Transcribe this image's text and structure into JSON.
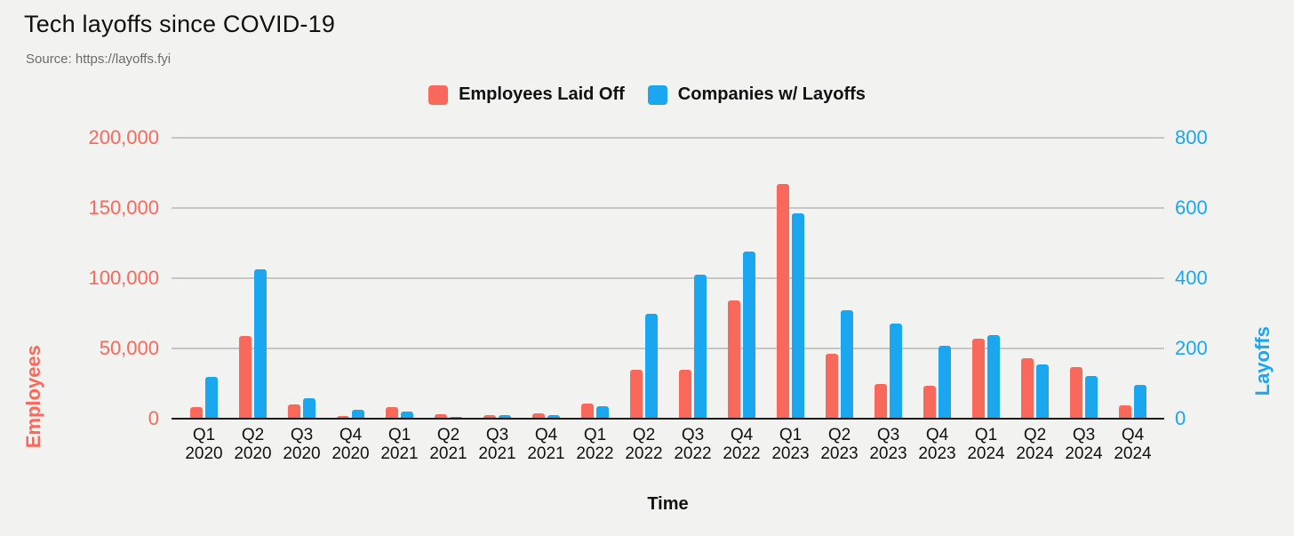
{
  "header": {
    "title": "Tech layoffs since COVID-19",
    "source": "Source: https://layoffs.fyi"
  },
  "legend": {
    "items": [
      {
        "label": "Employees Laid Off",
        "color": "#F8695B"
      },
      {
        "label": "Companies w/ Layoffs",
        "color": "#1AA7EF"
      }
    ]
  },
  "colors": {
    "employees": "#F8695B",
    "companies": "#1AA7EF",
    "background": "#F2F2F0",
    "gridline": "#C6C6C4"
  },
  "chart_data": {
    "type": "bar",
    "title": "Tech layoffs since COVID-19",
    "xlabel": "Time",
    "categories": [
      "Q1 2020",
      "Q2 2020",
      "Q3 2020",
      "Q4 2020",
      "Q1 2021",
      "Q2 2021",
      "Q3 2021",
      "Q4 2021",
      "Q1 2022",
      "Q2 2022",
      "Q3 2022",
      "Q4 2022",
      "Q1 2023",
      "Q2 2023",
      "Q3 2023",
      "Q4 2023",
      "Q1 2024",
      "Q2 2024",
      "Q3 2024",
      "Q4 2024"
    ],
    "series": [
      {
        "name": "Employees Laid Off",
        "axis": "left",
        "color": "#F8695B",
        "values": [
          8500,
          59000,
          10000,
          2000,
          8000,
          3200,
          2500,
          3600,
          10500,
          35000,
          35000,
          84000,
          167000,
          46000,
          24500,
          23500,
          57000,
          43000,
          37000,
          9500
        ]
      },
      {
        "name": "Companies w/ Layoffs",
        "axis": "right",
        "color": "#1AA7EF",
        "values": [
          120,
          425,
          58,
          25,
          20,
          6,
          9,
          11,
          35,
          300,
          410,
          475,
          585,
          308,
          270,
          208,
          238,
          155,
          122,
          95
        ]
      }
    ],
    "left_axis": {
      "label": "Employees",
      "min": 0,
      "max": 200000,
      "ticks": [
        "0",
        "50,000",
        "100,000",
        "150,000",
        "200,000"
      ]
    },
    "right_axis": {
      "label": "Layoffs",
      "min": 0,
      "max": 800,
      "ticks": [
        "0",
        "200",
        "400",
        "600",
        "800"
      ]
    },
    "grid": true,
    "legend_position": "top"
  }
}
